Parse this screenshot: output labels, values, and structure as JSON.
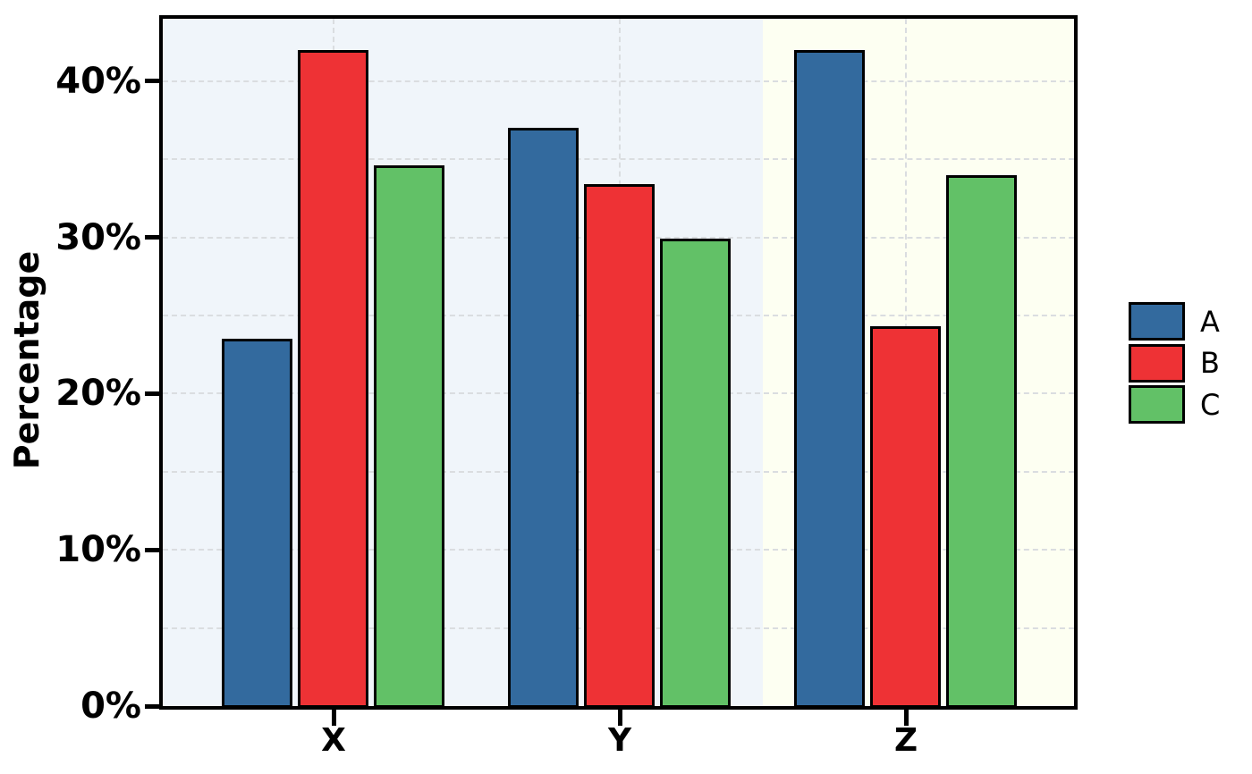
{
  "chart_data": {
    "type": "bar",
    "title": "",
    "xlabel": "",
    "ylabel": "Percentage",
    "categories": [
      "X",
      "Y",
      "Z"
    ],
    "series": [
      {
        "name": "A",
        "color": "#336A9E",
        "values": [
          23.5,
          37.0,
          42.0
        ]
      },
      {
        "name": "B",
        "color": "#EE3235",
        "values": [
          42.0,
          33.4,
          24.3
        ]
      },
      {
        "name": "C",
        "color": "#62C167",
        "values": [
          34.6,
          29.9,
          34.0
        ]
      }
    ],
    "ylim": [
      0,
      44
    ],
    "yticks": [
      {
        "value": 0,
        "label": "0%"
      },
      {
        "value": 10,
        "label": "10%"
      },
      {
        "value": 20,
        "label": "20%"
      },
      {
        "value": 30,
        "label": "30%"
      },
      {
        "value": 40,
        "label": "40%"
      }
    ],
    "grid": {
      "style": "dashed",
      "horizontal_step": 5,
      "vertical_at_categories": true
    },
    "legend": {
      "position": "right",
      "entries": [
        "A",
        "B",
        "C"
      ]
    },
    "background_bands": [
      {
        "categories": [
          "X",
          "Y"
        ],
        "color": "#F0F5FA"
      },
      {
        "categories": [
          "Z"
        ],
        "color": "#FDFFF2"
      }
    ],
    "bar_border_color": "#000000",
    "frame_color": "#000000",
    "gridline_color": "#dadde0"
  }
}
